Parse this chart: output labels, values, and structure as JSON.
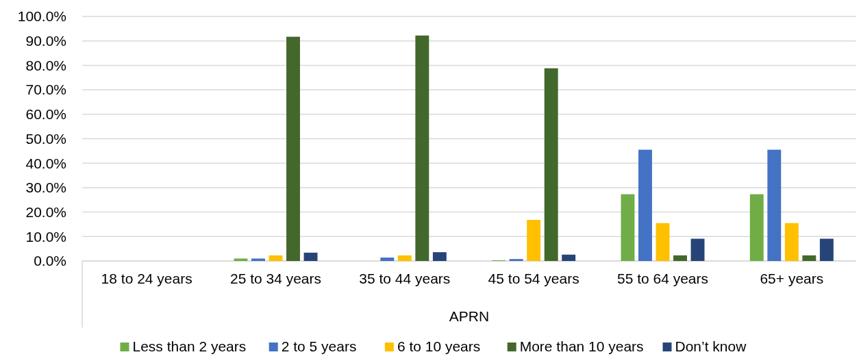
{
  "chart_data": {
    "type": "bar",
    "xlabel": "APRN",
    "categories": [
      "18 to 24 years",
      "25 to 34 years",
      "35 to 44 years",
      "45 to 54 years",
      "55 to 64 years",
      "65+ years"
    ],
    "series": [
      {
        "name": "Less than 2 years",
        "color": "#70ad47",
        "values": [
          0,
          1.0,
          0,
          0.3,
          27.3,
          27.3
        ]
      },
      {
        "name": "2 to 5 years",
        "color": "#4472c4",
        "values": [
          0,
          1.0,
          1.4,
          0.8,
          45.5,
          45.5
        ]
      },
      {
        "name": "6 to 10 years",
        "color": "#ffc000",
        "values": [
          0,
          2.3,
          2.3,
          16.8,
          15.5,
          15.5
        ]
      },
      {
        "name": "More than 10 years",
        "color": "#43682b",
        "values": [
          0,
          91.7,
          92.2,
          78.8,
          2.3,
          2.3
        ]
      },
      {
        "name": "Don’t know",
        "color": "#264478",
        "values": [
          0,
          3.4,
          3.6,
          2.6,
          9.1,
          9.1
        ]
      }
    ],
    "ylim": [
      0,
      100
    ],
    "yticks": [
      {
        "value": 0,
        "label": "0.0%"
      },
      {
        "value": 10,
        "label": "10.0%"
      },
      {
        "value": 20,
        "label": "20.0%"
      },
      {
        "value": 30,
        "label": "30.0%"
      },
      {
        "value": 40,
        "label": "40.0%"
      },
      {
        "value": 50,
        "label": "50.0%"
      },
      {
        "value": 60,
        "label": "60.0%"
      },
      {
        "value": 70,
        "label": "70.0%"
      },
      {
        "value": 80,
        "label": "80.0%"
      },
      {
        "value": 90,
        "label": "90.0%"
      },
      {
        "value": 100,
        "label": "100.0%"
      }
    ],
    "grid": "y",
    "legend": "bottom"
  }
}
